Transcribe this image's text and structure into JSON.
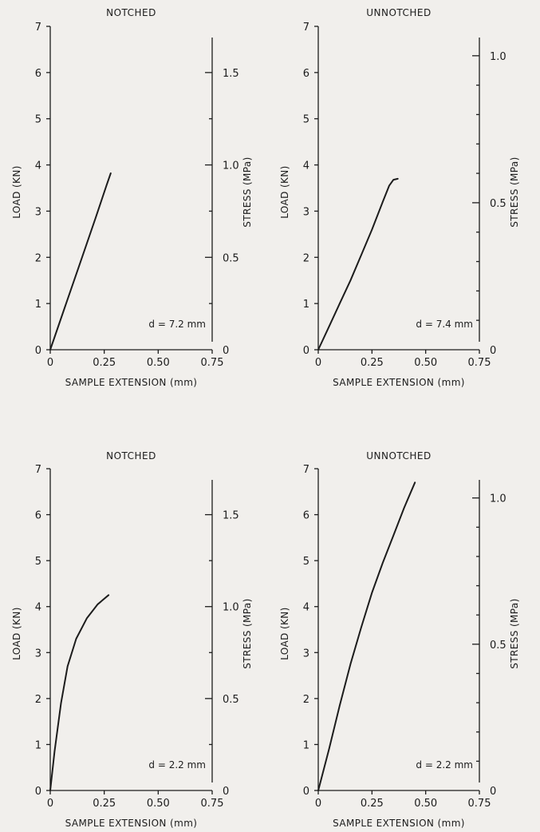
{
  "chart_data": [
    {
      "type": "line",
      "title": "NOTCHED",
      "xlabel": "SAMPLE EXTENSION (mm)",
      "ylabel": "LOAD (KN)",
      "y2label": "STRESS (MPa)",
      "xlim": [
        0,
        0.75
      ],
      "ylim": [
        0,
        7
      ],
      "y2lim": [
        0,
        1.75
      ],
      "x_ticks": [
        0,
        0.25,
        0.5,
        0.75
      ],
      "x_tick_labels": [
        "0",
        "0.25",
        "0.50",
        "0.75"
      ],
      "y_ticks": [
        0,
        1,
        2,
        3,
        4,
        5,
        6,
        7
      ],
      "y_tick_labels": [
        "0",
        "1",
        "2",
        "3",
        "4",
        "5",
        "6",
        "7"
      ],
      "y2_ticks": [
        0,
        0.5,
        1.0,
        1.5
      ],
      "y2_tick_labels": [
        "0",
        "0.5",
        "1.0",
        "1.5"
      ],
      "y2_minor_ticks": [
        0.25,
        0.75,
        1.25
      ],
      "annotation": "d = 7.2 mm",
      "series": [
        {
          "x": [
            0,
            0.07,
            0.14,
            0.21,
            0.26,
            0.28
          ],
          "y": [
            0,
            0.95,
            1.9,
            2.85,
            3.55,
            3.82
          ]
        }
      ]
    },
    {
      "type": "line",
      "title": "UNNOTCHED",
      "xlabel": "SAMPLE EXTENSION (mm)",
      "ylabel": "LOAD (KN)",
      "y2label": "STRESS (MPa)",
      "xlim": [
        0,
        0.75
      ],
      "ylim": [
        0,
        7
      ],
      "y2lim": [
        0,
        1.1
      ],
      "x_ticks": [
        0,
        0.25,
        0.5,
        0.75
      ],
      "x_tick_labels": [
        "0",
        "0.25",
        "0.50",
        "0.75"
      ],
      "y_ticks": [
        0,
        1,
        2,
        3,
        4,
        5,
        6,
        7
      ],
      "y_tick_labels": [
        "0",
        "1",
        "2",
        "3",
        "4",
        "5",
        "6",
        "7"
      ],
      "y2_ticks": [
        0,
        0.5,
        1.0
      ],
      "y2_tick_labels": [
        "0",
        "0.5",
        "1.0"
      ],
      "y2_minor_ticks": [
        0.1,
        0.2,
        0.3,
        0.4,
        0.6,
        0.7,
        0.8,
        0.9
      ],
      "annotation": "d = 7.4 mm",
      "series": [
        {
          "x": [
            0,
            0.05,
            0.1,
            0.15,
            0.2,
            0.25,
            0.3,
            0.33,
            0.35,
            0.37
          ],
          "y": [
            0,
            0.5,
            1.0,
            1.5,
            2.05,
            2.6,
            3.2,
            3.55,
            3.68,
            3.7
          ]
        }
      ]
    },
    {
      "type": "line",
      "title": "NOTCHED",
      "xlabel": "SAMPLE EXTENSION (mm)",
      "ylabel": "LOAD (KN)",
      "y2label": "STRESS (MPa)",
      "xlim": [
        0,
        0.75
      ],
      "ylim": [
        0,
        7
      ],
      "y2lim": [
        0,
        1.75
      ],
      "x_ticks": [
        0,
        0.25,
        0.5,
        0.75
      ],
      "x_tick_labels": [
        "0",
        "0.25",
        "0.50",
        "0.75"
      ],
      "y_ticks": [
        0,
        1,
        2,
        3,
        4,
        5,
        6,
        7
      ],
      "y_tick_labels": [
        "0",
        "1",
        "2",
        "3",
        "4",
        "5",
        "6",
        "7"
      ],
      "y2_ticks": [
        0,
        0.5,
        1.0,
        1.5
      ],
      "y2_tick_labels": [
        "0",
        "0.5",
        "1.0",
        "1.5"
      ],
      "y2_minor_ticks": [
        0.25,
        0.75,
        1.25
      ],
      "annotation": "d = 2.2 mm",
      "series": [
        {
          "x": [
            0,
            0.02,
            0.05,
            0.08,
            0.12,
            0.17,
            0.22,
            0.27
          ],
          "y": [
            0,
            0.85,
            1.9,
            2.7,
            3.3,
            3.75,
            4.05,
            4.25
          ]
        }
      ]
    },
    {
      "type": "line",
      "title": "UNNOTCHED",
      "xlabel": "SAMPLE EXTENSION (mm)",
      "ylabel": "LOAD (KN)",
      "y2label": "STRESS (MPa)",
      "xlim": [
        0,
        0.75
      ],
      "ylim": [
        0,
        7
      ],
      "y2lim": [
        0,
        1.1
      ],
      "x_ticks": [
        0,
        0.25,
        0.5,
        0.75
      ],
      "x_tick_labels": [
        "0",
        "0.25",
        "0.50",
        "0.75"
      ],
      "y_ticks": [
        0,
        1,
        2,
        3,
        4,
        5,
        6,
        7
      ],
      "y_tick_labels": [
        "0",
        "1",
        "2",
        "3",
        "4",
        "5",
        "6",
        "7"
      ],
      "y2_ticks": [
        0,
        0.5,
        1.0
      ],
      "y2_tick_labels": [
        "0",
        "0.5",
        "1.0"
      ],
      "y2_minor_ticks": [
        0.1,
        0.2,
        0.3,
        0.4,
        0.6,
        0.7,
        0.8,
        0.9
      ],
      "annotation": "d = 2.2 mm",
      "series": [
        {
          "x": [
            0,
            0.05,
            0.1,
            0.15,
            0.2,
            0.25,
            0.3,
            0.35,
            0.4,
            0.45
          ],
          "y": [
            0,
            0.9,
            1.85,
            2.75,
            3.55,
            4.3,
            4.95,
            5.55,
            6.15,
            6.7
          ]
        }
      ]
    }
  ]
}
